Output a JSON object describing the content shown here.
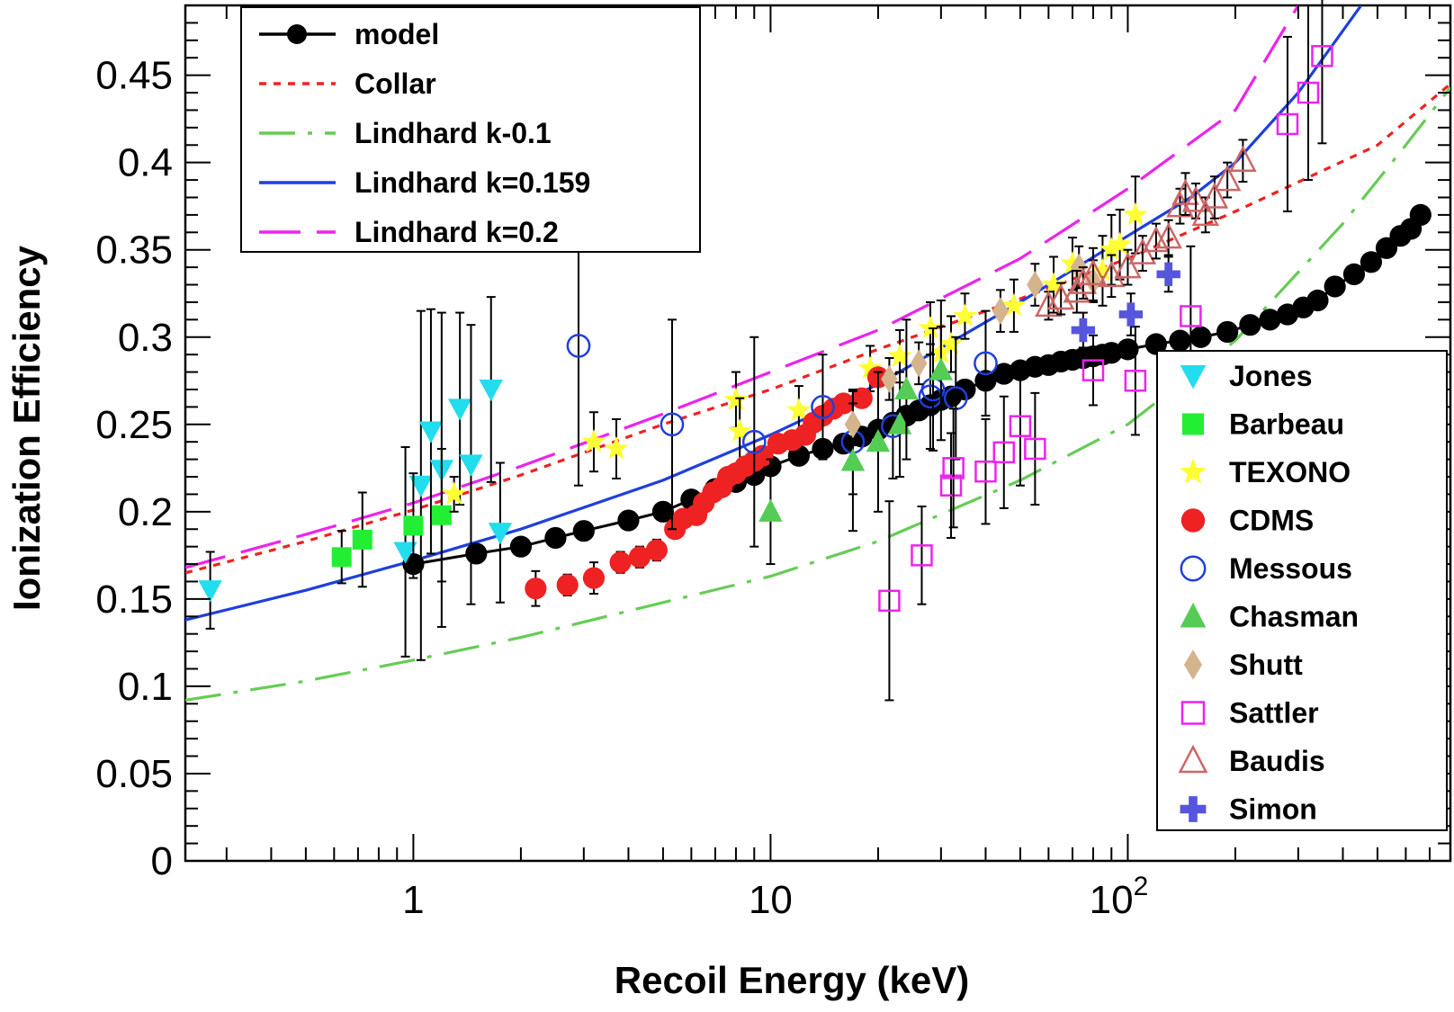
{
  "chart_data": {
    "type": "scatter",
    "xlabel": "Recoil Energy (keV)",
    "ylabel": "Ionization Efficiency",
    "x_scale": "log",
    "xlim": [
      0.23,
      800
    ],
    "ylim": [
      0,
      0.49
    ],
    "x_ticks": [
      {
        "value": 1,
        "base": "1",
        "exp": ""
      },
      {
        "value": 10,
        "base": "10",
        "exp": ""
      },
      {
        "value": 100,
        "base": "10",
        "exp": "2"
      }
    ],
    "y_ticks": [
      "0",
      "0.05",
      "0.1",
      "0.15",
      "0.2",
      "0.25",
      "0.3",
      "0.35",
      "0.4",
      "0.45"
    ],
    "legend_lines": [
      {
        "label": "model",
        "color": "#000000",
        "dash": "solid",
        "marker": "circle-filled"
      },
      {
        "label": "Collar",
        "color": "#ee2222",
        "dash": "dotted"
      },
      {
        "label": "Lindhard k-0.1",
        "color": "#66cc55",
        "dash": "dashdot"
      },
      {
        "label": "Lindhard k=0.159",
        "color": "#1f3fdd",
        "dash": "solid"
      },
      {
        "label": "Lindhard k=0.2",
        "color": "#ee22ee",
        "dash": "longdash"
      }
    ],
    "legend_lines_position": "top-left",
    "legend_points_position": "bottom-right",
    "curves": [
      {
        "name": "Collar",
        "color": "#ee2222",
        "dash": "dotted",
        "points": [
          [
            0.23,
            0.165
          ],
          [
            0.5,
            0.183
          ],
          [
            1,
            0.201
          ],
          [
            2,
            0.221
          ],
          [
            5,
            0.25
          ],
          [
            10,
            0.27
          ],
          [
            20,
            0.293
          ],
          [
            50,
            0.322
          ],
          [
            100,
            0.345
          ],
          [
            200,
            0.372
          ],
          [
            500,
            0.41
          ],
          [
            800,
            0.445
          ]
        ]
      },
      {
        "name": "Lindhard k-0.1",
        "color": "#66cc55",
        "dash": "dashdot",
        "points": [
          [
            0.23,
            0.092
          ],
          [
            0.5,
            0.103
          ],
          [
            1,
            0.115
          ],
          [
            2,
            0.128
          ],
          [
            5,
            0.148
          ],
          [
            10,
            0.163
          ],
          [
            20,
            0.183
          ],
          [
            50,
            0.218
          ],
          [
            100,
            0.25
          ],
          [
            200,
            0.298
          ],
          [
            400,
            0.365
          ],
          [
            600,
            0.41
          ],
          [
            800,
            0.443
          ]
        ]
      },
      {
        "name": "Lindhard k=0.159",
        "color": "#1f3fdd",
        "dash": "solid",
        "points": [
          [
            0.23,
            0.138
          ],
          [
            0.5,
            0.155
          ],
          [
            1,
            0.172
          ],
          [
            2,
            0.19
          ],
          [
            5,
            0.218
          ],
          [
            10,
            0.244
          ],
          [
            20,
            0.273
          ],
          [
            50,
            0.32
          ],
          [
            100,
            0.358
          ],
          [
            150,
            0.38
          ],
          [
            200,
            0.4
          ],
          [
            300,
            0.44
          ],
          [
            450,
            0.49
          ]
        ]
      },
      {
        "name": "Lindhard k=0.2",
        "color": "#ee22ee",
        "dash": "longdash",
        "points": [
          [
            0.23,
            0.168
          ],
          [
            0.5,
            0.187
          ],
          [
            1,
            0.205
          ],
          [
            2,
            0.226
          ],
          [
            5,
            0.256
          ],
          [
            10,
            0.28
          ],
          [
            20,
            0.304
          ],
          [
            50,
            0.345
          ],
          [
            100,
            0.385
          ],
          [
            200,
            0.43
          ],
          [
            300,
            0.49
          ]
        ]
      }
    ],
    "series": [
      {
        "name": "model",
        "marker": "circle",
        "filled": true,
        "color": "#000000",
        "line": true,
        "points": [
          [
            1,
            0.17
          ],
          [
            1.5,
            0.176
          ],
          [
            2,
            0.18
          ],
          [
            2.5,
            0.185
          ],
          [
            3,
            0.189
          ],
          [
            4,
            0.195
          ],
          [
            5,
            0.2
          ],
          [
            6,
            0.207
          ],
          [
            7,
            0.213
          ],
          [
            8,
            0.217
          ],
          [
            9,
            0.221
          ],
          [
            10,
            0.226
          ],
          [
            12,
            0.232
          ],
          [
            14,
            0.236
          ],
          [
            16,
            0.239
          ],
          [
            18,
            0.243
          ],
          [
            20,
            0.247
          ],
          [
            22,
            0.251
          ],
          [
            24,
            0.255
          ],
          [
            26,
            0.258
          ],
          [
            28,
            0.261
          ],
          [
            30,
            0.264
          ],
          [
            32,
            0.266
          ],
          [
            35,
            0.27
          ],
          [
            40,
            0.275
          ],
          [
            45,
            0.279
          ],
          [
            50,
            0.281
          ],
          [
            55,
            0.283
          ],
          [
            60,
            0.284
          ],
          [
            65,
            0.286
          ],
          [
            70,
            0.287
          ],
          [
            75,
            0.288
          ],
          [
            80,
            0.289
          ],
          [
            85,
            0.29
          ],
          [
            90,
            0.291
          ],
          [
            100,
            0.293
          ],
          [
            120,
            0.296
          ],
          [
            140,
            0.298
          ],
          [
            160,
            0.3
          ],
          [
            190,
            0.303
          ],
          [
            220,
            0.307
          ],
          [
            250,
            0.31
          ],
          [
            280,
            0.313
          ],
          [
            310,
            0.317
          ],
          [
            340,
            0.321
          ],
          [
            380,
            0.329
          ],
          [
            430,
            0.336
          ],
          [
            480,
            0.343
          ],
          [
            530,
            0.351
          ],
          [
            580,
            0.358
          ],
          [
            620,
            0.362
          ],
          [
            660,
            0.37
          ]
        ]
      },
      {
        "name": "Jones",
        "marker": "triangle-down",
        "filled": true,
        "color": "#22ddee",
        "points": [
          [
            0.27,
            0.155,
            0.022
          ],
          [
            0.95,
            0.177,
            0.06
          ],
          [
            1.05,
            0.215,
            0.1
          ],
          [
            1.12,
            0.246,
            0.07
          ],
          [
            1.2,
            0.224,
            0.09
          ],
          [
            1.35,
            0.259,
            0.055
          ],
          [
            1.45,
            0.227,
            0.08
          ],
          [
            1.65,
            0.27,
            0.053
          ],
          [
            1.75,
            0.188,
            0.04
          ]
        ]
      },
      {
        "name": "Barbeau",
        "marker": "square",
        "filled": true,
        "color": "#22ee33",
        "points": [
          [
            0.63,
            0.174,
            0.015
          ],
          [
            0.72,
            0.184,
            0.027
          ],
          [
            1,
            0.192,
            0.03
          ],
          [
            1.2,
            0.198,
            0.038
          ]
        ]
      },
      {
        "name": "TEXONO",
        "marker": "star",
        "filled": true,
        "color": "#ffff33",
        "points": [
          [
            1.3,
            0.21,
            0.01
          ],
          [
            3.2,
            0.24,
            0.017
          ],
          [
            3.7,
            0.236,
            0.017
          ],
          [
            8,
            0.264,
            0.016
          ],
          [
            8.2,
            0.246,
            0.019
          ],
          [
            12,
            0.258,
            0.014
          ],
          [
            19,
            0.282,
            0.013
          ],
          [
            23,
            0.289,
            0.015
          ],
          [
            28,
            0.305,
            0.015
          ],
          [
            30,
            0.291,
            0.015
          ],
          [
            32,
            0.296,
            0.016
          ],
          [
            35,
            0.312,
            0.013
          ],
          [
            48,
            0.318,
            0.015
          ],
          [
            62,
            0.33,
            0.016
          ],
          [
            70,
            0.342,
            0.015
          ],
          [
            85,
            0.338,
            0.02
          ],
          [
            90,
            0.35,
            0.02
          ],
          [
            95,
            0.353,
            0.02
          ],
          [
            105,
            0.37,
            0.022
          ]
        ]
      },
      {
        "name": "CDMS",
        "marker": "circle",
        "filled": true,
        "color": "#ee2222",
        "points": [
          [
            2.2,
            0.156,
            0.01
          ],
          [
            2.7,
            0.158,
            0.006
          ],
          [
            3.2,
            0.162,
            0.009
          ],
          [
            3.8,
            0.171,
            0.006
          ],
          [
            4.3,
            0.174,
            0.006
          ],
          [
            4.8,
            0.178,
            0.006
          ],
          [
            5.4,
            0.19,
            0.005
          ],
          [
            5.7,
            0.196,
            0.005
          ],
          [
            6.2,
            0.198,
            0.005
          ],
          [
            6.5,
            0.205,
            0.004
          ],
          [
            6.9,
            0.211,
            0.004
          ],
          [
            7.3,
            0.214,
            0.004
          ],
          [
            7.6,
            0.22,
            0.004
          ],
          [
            8,
            0.222,
            0.004
          ],
          [
            8.5,
            0.226,
            0.004
          ],
          [
            9,
            0.229,
            0.004
          ],
          [
            9.5,
            0.232,
            0.004
          ],
          [
            10.5,
            0.239,
            0.004
          ],
          [
            11.5,
            0.241,
            0.004
          ],
          [
            12.5,
            0.244,
            0.004
          ],
          [
            13.2,
            0.251,
            0.004
          ],
          [
            14,
            0.255,
            0.004
          ],
          [
            15,
            0.259,
            0.004
          ],
          [
            16,
            0.262,
            0.004
          ],
          [
            18,
            0.265,
            0.004
          ],
          [
            20,
            0.277,
            0.004
          ]
        ]
      },
      {
        "name": "Messous",
        "marker": "circle",
        "filled": false,
        "color": "#1f3fdd",
        "points": [
          [
            2.9,
            0.295,
            0.08
          ],
          [
            5.3,
            0.25,
            0.06
          ],
          [
            9,
            0.24,
            0.06
          ],
          [
            14,
            0.26,
            0.03
          ],
          [
            17,
            0.24,
            0.03
          ],
          [
            22,
            0.249,
            0.03
          ],
          [
            28,
            0.266,
            0.03
          ],
          [
            28.5,
            0.27,
            0.035
          ],
          [
            33,
            0.265,
            0.035
          ],
          [
            40,
            0.285,
            0.03
          ]
        ]
      },
      {
        "name": "Chasman",
        "marker": "triangle-up",
        "filled": true,
        "color": "#55cc55",
        "points": [
          [
            10,
            0.2,
            0.03
          ],
          [
            17,
            0.229,
            0.04
          ],
          [
            20,
            0.24,
            0.04
          ],
          [
            23,
            0.25,
            0.03
          ],
          [
            24,
            0.27,
            0.04
          ],
          [
            30,
            0.281,
            0.04
          ]
        ]
      },
      {
        "name": "Shutt",
        "marker": "diamond",
        "filled": true,
        "color": "#d4b48c",
        "points": [
          [
            17,
            0.25,
            0.012
          ],
          [
            21.5,
            0.276,
            0.012
          ],
          [
            26,
            0.285,
            0.012
          ],
          [
            44,
            0.315,
            0.012
          ],
          [
            55,
            0.33,
            0.012
          ],
          [
            73,
            0.34,
            0.012
          ],
          [
            80,
            0.332,
            0.012
          ]
        ]
      },
      {
        "name": "Sattler",
        "marker": "square",
        "filled": false,
        "color": "#ee22ee",
        "points": [
          [
            21.5,
            0.149,
            0.057
          ],
          [
            26.5,
            0.175,
            0.028
          ],
          [
            32,
            0.215,
            0.03
          ],
          [
            32.5,
            0.225,
            0.034
          ],
          [
            40,
            0.223,
            0.03
          ],
          [
            45,
            0.234,
            0.032
          ],
          [
            50,
            0.249,
            0.034
          ],
          [
            55,
            0.236,
            0.032
          ],
          [
            80,
            0.281,
            0.02
          ],
          [
            105,
            0.275,
            0.031
          ],
          [
            150,
            0.312,
            0.04
          ],
          [
            280,
            0.422,
            0.05
          ],
          [
            320,
            0.44,
            0.05
          ],
          [
            350,
            0.461,
            0.05
          ]
        ]
      },
      {
        "name": "Baudis",
        "marker": "triangle-up",
        "filled": false,
        "color": "#cc6666",
        "points": [
          [
            60,
            0.318,
            0.008
          ],
          [
            65,
            0.322,
            0.009
          ],
          [
            72,
            0.326,
            0.012
          ],
          [
            75,
            0.331,
            0.009
          ],
          [
            80,
            0.336,
            0.015
          ],
          [
            90,
            0.335,
            0.012
          ],
          [
            100,
            0.34,
            0.01
          ],
          [
            110,
            0.348,
            0.01
          ],
          [
            120,
            0.355,
            0.01
          ],
          [
            130,
            0.357,
            0.01
          ],
          [
            140,
            0.375,
            0.01
          ],
          [
            145,
            0.382,
            0.012
          ],
          [
            155,
            0.378,
            0.01
          ],
          [
            165,
            0.37,
            0.01
          ],
          [
            175,
            0.38,
            0.012
          ],
          [
            190,
            0.39,
            0.01
          ],
          [
            210,
            0.401,
            0.012
          ]
        ]
      },
      {
        "name": "Simon",
        "marker": "cross",
        "filled": true,
        "color": "#5555dd",
        "points": [
          [
            75,
            0.304,
            0.01
          ],
          [
            102,
            0.313,
            0.012
          ],
          [
            130,
            0.336,
            0.01
          ]
        ]
      }
    ]
  }
}
